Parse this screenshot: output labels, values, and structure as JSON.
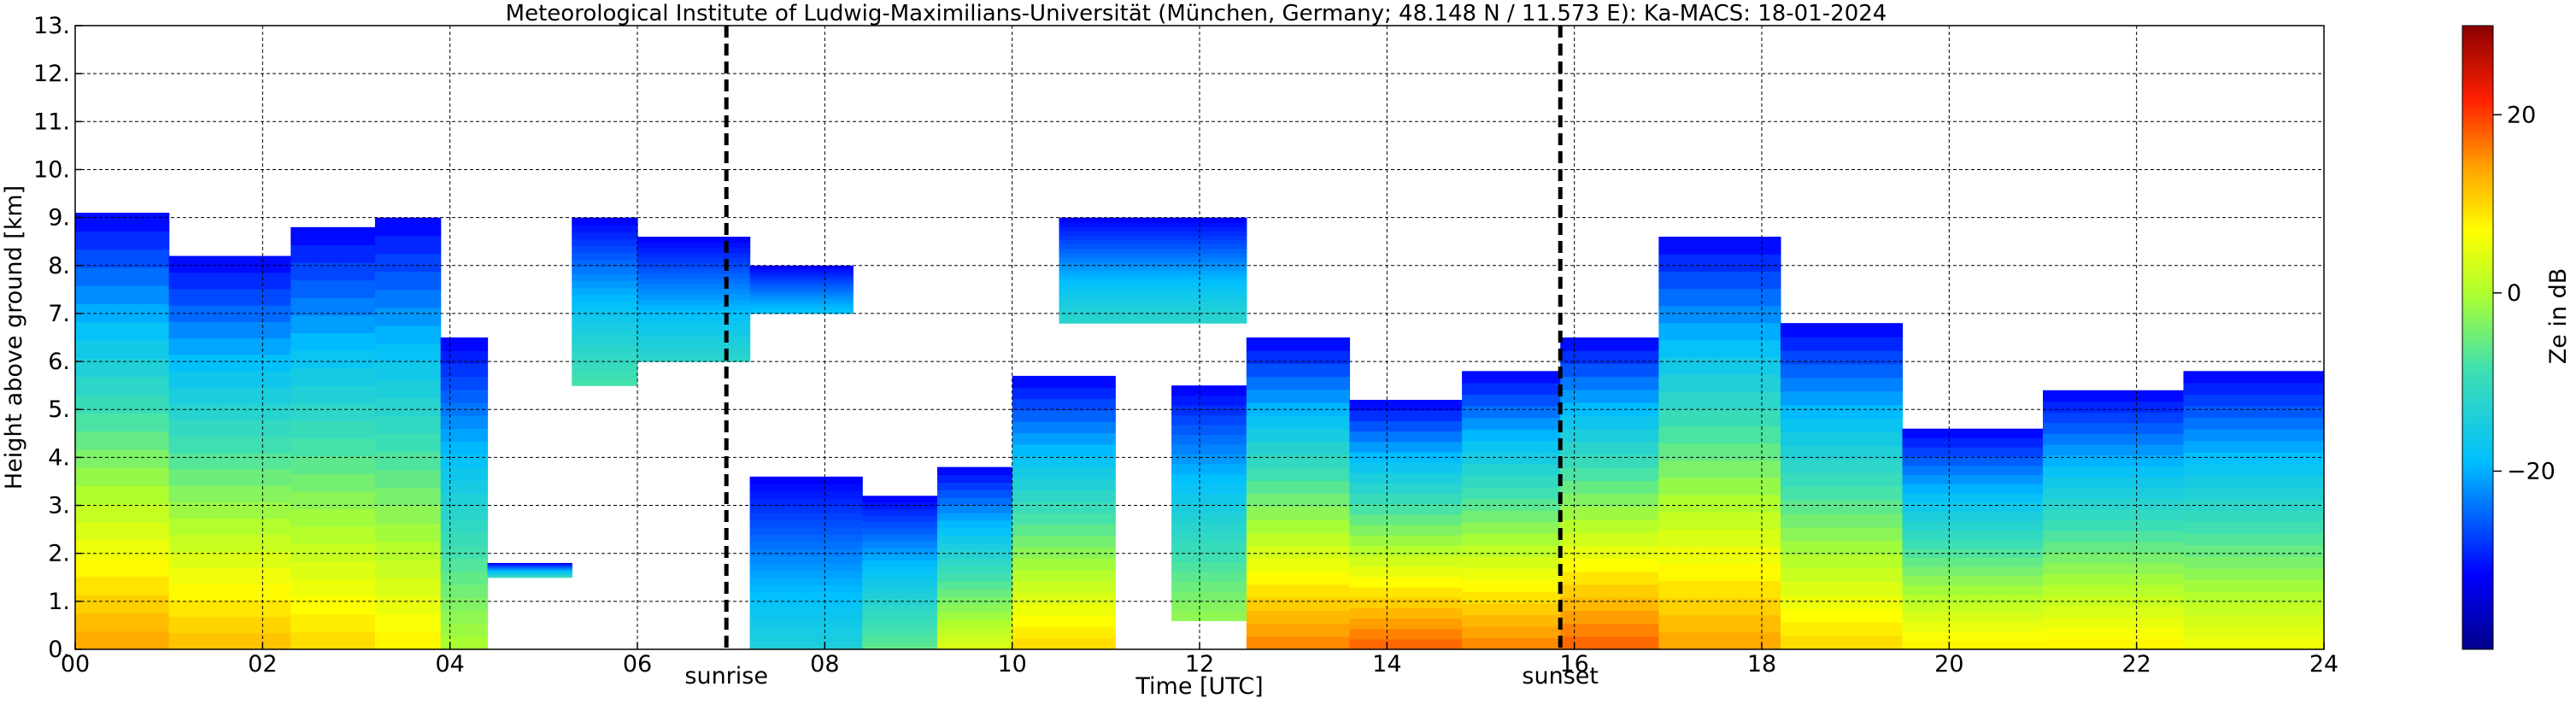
{
  "chart_data": {
    "type": "heatmap",
    "title": "Meteorological Institute of Ludwig-Maximilians-Universität (München, Germany; 48.148 N / 11.573 E):    Ka-MACS: 18-01-2024",
    "xlabel": "Time [UTC]",
    "ylabel": "Height above ground [km]",
    "xlim": [
      0,
      24
    ],
    "ylim": [
      0,
      13
    ],
    "x_ticks": [
      "00",
      "02",
      "04",
      "06",
      "08",
      "10",
      "12",
      "14",
      "16",
      "18",
      "20",
      "22",
      "24"
    ],
    "y_ticks": [
      "0.",
      "1.",
      "2.",
      "3.",
      "4.",
      "5.",
      "6.",
      "7.",
      "8.",
      "9.",
      "10.",
      "11.",
      "12.",
      "13."
    ],
    "grid": true,
    "colorbar": {
      "label": "Ze in dB",
      "range": [
        -40,
        30
      ],
      "ticks": [
        "20",
        "0",
        "−20"
      ],
      "tick_values": [
        20,
        0,
        -20
      ],
      "colormap": "jet"
    },
    "markers": [
      {
        "label": "sunrise",
        "x": 6.95
      },
      {
        "label": "sunset",
        "x": 15.85
      }
    ],
    "echo_segments": [
      {
        "t0": 0.0,
        "t1": 1.0,
        "top": 9.1,
        "base": 0.0,
        "core": 14
      },
      {
        "t0": 1.0,
        "t1": 2.3,
        "top": 8.2,
        "base": 0.0,
        "core": 12
      },
      {
        "t0": 2.3,
        "t1": 3.2,
        "top": 8.8,
        "base": 0.0,
        "core": 10
      },
      {
        "t0": 3.2,
        "t1": 3.9,
        "top": 9.0,
        "base": 0.0,
        "core": 8
      },
      {
        "t0": 3.9,
        "t1": 4.4,
        "top": 6.5,
        "base": 0.0,
        "core": 0
      },
      {
        "t0": 4.4,
        "t1": 5.3,
        "top": 1.8,
        "base": 1.5,
        "core": -10
      },
      {
        "t0": 5.3,
        "t1": 6.0,
        "top": 9.0,
        "base": 5.5,
        "core": -8
      },
      {
        "t0": 6.0,
        "t1": 7.2,
        "top": 8.6,
        "base": 6.0,
        "core": -12
      },
      {
        "t0": 7.2,
        "t1": 8.3,
        "top": 8.0,
        "base": 7.0,
        "core": -18
      },
      {
        "t0": 7.2,
        "t1": 8.4,
        "top": 3.6,
        "base": 0.0,
        "core": -14
      },
      {
        "t0": 8.4,
        "t1": 9.2,
        "top": 3.2,
        "base": 0.0,
        "core": -6
      },
      {
        "t0": 9.2,
        "t1": 10.0,
        "top": 3.8,
        "base": 0.0,
        "core": 4
      },
      {
        "t0": 10.0,
        "t1": 11.1,
        "top": 5.7,
        "base": 0.0,
        "core": 10
      },
      {
        "t0": 10.5,
        "t1": 12.5,
        "top": 9.0,
        "base": 6.8,
        "core": -12
      },
      {
        "t0": 11.7,
        "t1": 12.5,
        "top": 5.5,
        "base": 0.6,
        "core": -2
      },
      {
        "t0": 12.5,
        "t1": 13.6,
        "top": 6.5,
        "base": 0.0,
        "core": 16
      },
      {
        "t0": 13.6,
        "t1": 14.8,
        "top": 5.2,
        "base": 0.0,
        "core": 18
      },
      {
        "t0": 14.8,
        "t1": 15.85,
        "top": 5.8,
        "base": 0.0,
        "core": 16
      },
      {
        "t0": 15.85,
        "t1": 16.9,
        "top": 6.5,
        "base": 0.0,
        "core": 18
      },
      {
        "t0": 16.9,
        "t1": 18.2,
        "top": 8.6,
        "base": 0.0,
        "core": 14
      },
      {
        "t0": 18.2,
        "t1": 19.5,
        "top": 6.8,
        "base": 0.0,
        "core": 10
      },
      {
        "t0": 19.5,
        "t1": 21.0,
        "top": 4.6,
        "base": 0.0,
        "core": 8
      },
      {
        "t0": 21.0,
        "t1": 22.5,
        "top": 5.4,
        "base": 0.0,
        "core": 8
      },
      {
        "t0": 22.5,
        "t1": 24.0,
        "top": 5.8,
        "base": 0.0,
        "core": 6
      }
    ]
  }
}
